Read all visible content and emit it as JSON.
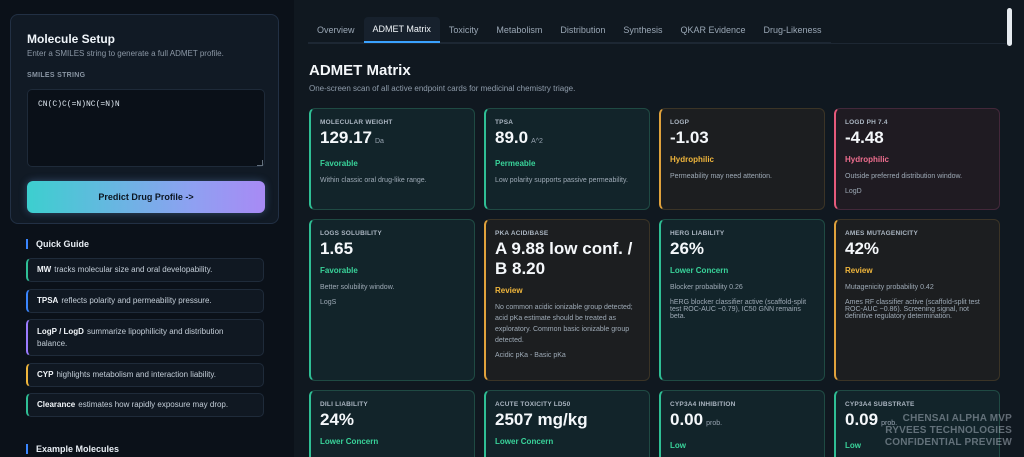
{
  "sidebar": {
    "setup_title": "Molecule Setup",
    "setup_sub": "Enter a SMILES string to generate a full ADMET profile.",
    "smiles_label": "SMILES STRING",
    "smiles_value": "CN(C)C(=N)NC(=N)N",
    "predict_label": "Predict Drug Profile ->",
    "quick_guide_title": "Quick Guide",
    "guide": [
      {
        "term": "MW",
        "text": "tracks molecular size and oral developability."
      },
      {
        "term": "TPSA",
        "text": "reflects polarity and permeability pressure."
      },
      {
        "term": "LogP / LogD",
        "text": "summarize lipophilicity and distribution balance."
      },
      {
        "term": "CYP",
        "text": "highlights metabolism and interaction liability."
      },
      {
        "term": "Clearance",
        "text": "estimates how rapidly exposure may drop."
      }
    ],
    "examples_title": "Example Molecules"
  },
  "tabs": [
    "Overview",
    "ADMET Matrix",
    "Toxicity",
    "Metabolism",
    "Distribution",
    "Synthesis",
    "QKAR Evidence",
    "Drug-Likeness"
  ],
  "main": {
    "title": "ADMET Matrix",
    "desc": "One-screen scan of all active endpoint cards for medicinal chemistry triage."
  },
  "cards": [
    {
      "key": "MOLECULAR WEIGHT",
      "value": "129.17",
      "unit": "Da",
      "status": "Favorable",
      "desc": "Within classic oral drug-like range.",
      "extra": ""
    },
    {
      "key": "TPSA",
      "value": "89.0",
      "unit": "A^2",
      "status": "Permeable",
      "desc": "Low polarity supports passive permeability.",
      "extra": ""
    },
    {
      "key": "LOGP",
      "value": "-1.03",
      "unit": "",
      "status": "Hydrophilic",
      "desc": "Permeability may need attention.",
      "extra": ""
    },
    {
      "key": "LOGD PH 7.4",
      "value": "-4.48",
      "unit": "",
      "status": "Hydrophilic",
      "desc": "Outside preferred distribution window.",
      "extra": "LogD"
    },
    {
      "key": "LOGS SOLUBILITY",
      "value": "1.65",
      "unit": "",
      "status": "Favorable",
      "desc": "Better solubility window.",
      "extra": "LogS"
    },
    {
      "key": "PKA ACID/BASE",
      "value": "A 9.88 low conf. / B 8.20",
      "unit": "",
      "status": "Review",
      "desc": "No common acidic ionizable group detected; acid pKa estimate should be treated as exploratory. Common basic ionizable group detected.",
      "extra": "Acidic pKa - Basic pKa"
    },
    {
      "key": "HERG LIABILITY",
      "value": "26%",
      "unit": "",
      "status": "Lower Concern",
      "desc": "Blocker probability 0.26",
      "extra": "hERG blocker classifier active (scaffold-split test ROC-AUC ~0.79), IC50 GNN remains beta."
    },
    {
      "key": "AMES MUTAGENICITY",
      "value": "42%",
      "unit": "",
      "status": "Review",
      "desc": "Mutagenicity probability 0.42",
      "extra": "Ames RF classifier active (scaffold-split test ROC-AUC ~0.86). Screening signal, not definitive regulatory determination."
    },
    {
      "key": "DILI LIABILITY",
      "value": "24%",
      "unit": "",
      "status": "Lower Concern",
      "desc": "",
      "extra": ""
    },
    {
      "key": "ACUTE TOXICITY LD50",
      "value": "2507 mg/kg",
      "unit": "",
      "status": "Lower Concern",
      "desc": "",
      "extra": ""
    },
    {
      "key": "CYP3A4 INHIBITION",
      "value": "0.00",
      "unit": "prob.",
      "status": "Low",
      "desc": "",
      "extra": ""
    },
    {
      "key": "CYP3A4 SUBSTRATE",
      "value": "0.09",
      "unit": "prob.",
      "status": "Low",
      "desc": "",
      "extra": ""
    }
  ],
  "watermark": [
    "CHENSAI ALPHA MVP",
    "RYVEES TECHNOLOGIES",
    "CONFIDENTIAL PREVIEW"
  ],
  "colors": {
    "favorable": "#39d39a",
    "review": "#f0b63c",
    "hydrophilic": "#ef6e8f",
    "accent": "#3aa2ff"
  }
}
